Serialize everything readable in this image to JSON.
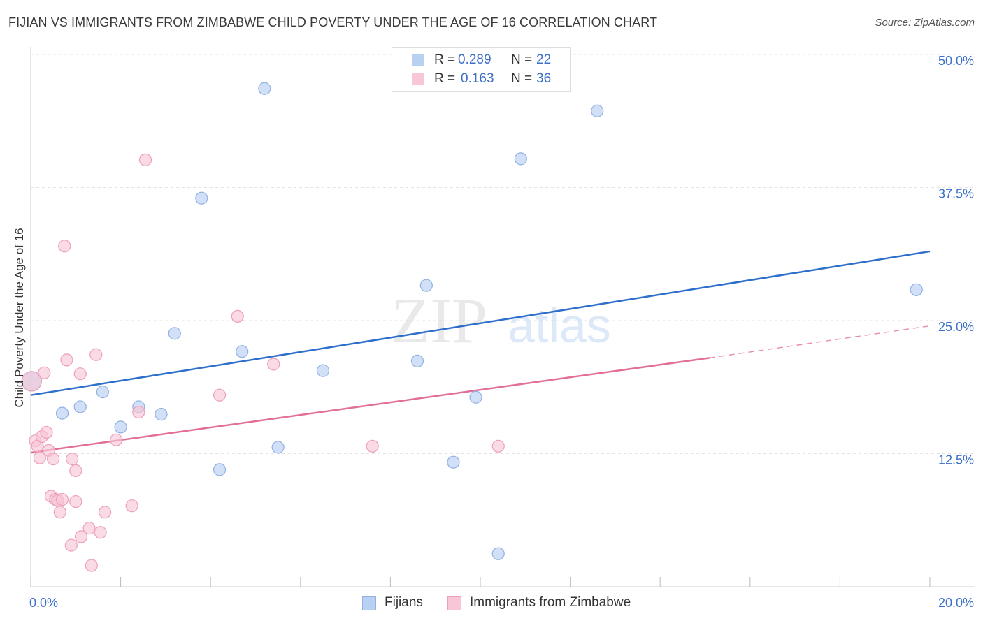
{
  "header": {
    "title": "FIJIAN VS IMMIGRANTS FROM ZIMBABWE CHILD POVERTY UNDER THE AGE OF 16 CORRELATION CHART",
    "source": "Source: ZipAtlas.com"
  },
  "watermark": {
    "zip": "ZIP",
    "atlas": "atlas"
  },
  "legend": {
    "fijians": {
      "r_label": "R = ",
      "r_value": "0.289",
      "n_label": "N = ",
      "n_value": "22"
    },
    "zimbabwe": {
      "r_label": "R = ",
      "r_value": "0.163",
      "n_label": "N = ",
      "n_value": "36"
    }
  },
  "bottom_legend": {
    "fijians": "Fijians",
    "zimbabwe": "Immigrants from Zimbabwe"
  },
  "colors": {
    "fijians_fill": "#b8d0f2",
    "fijians_stroke": "#8fb1e3",
    "fijians_line": "#2e6fcc",
    "zimbabwe_fill": "#f8c6d6",
    "zimbabwe_stroke": "#ee9fb9",
    "zimbabwe_line": "#e26f98",
    "axis_label": "#3c6fc7",
    "grid": "#e3e3e3"
  },
  "chart_data": {
    "type": "scatter",
    "title": "FIJIAN VS IMMIGRANTS FROM ZIMBABWE CHILD POVERTY UNDER THE AGE OF 16 CORRELATION CHART",
    "xlabel": "",
    "ylabel": "Child Poverty Under the Age of 16",
    "xlim": [
      0,
      20
    ],
    "ylim": [
      0,
      50
    ],
    "x_tick_labels": [
      "0.0%",
      "20.0%"
    ],
    "y_ticks": [
      12.5,
      25.0,
      37.5,
      50.0
    ],
    "y_tick_labels": [
      "12.5%",
      "25.0%",
      "37.5%",
      "50.0%"
    ],
    "grid": true,
    "legend_position": "top-center",
    "series": [
      {
        "name": "Fijians",
        "R": 0.289,
        "N": 22,
        "points": [
          [
            0.02,
            19.3
          ],
          [
            0.7,
            16.3
          ],
          [
            1.1,
            16.9
          ],
          [
            1.6,
            18.3
          ],
          [
            2.0,
            15.0
          ],
          [
            2.4,
            16.9
          ],
          [
            2.9,
            16.2
          ],
          [
            3.2,
            23.8
          ],
          [
            3.8,
            36.5
          ],
          [
            4.2,
            11.0
          ],
          [
            4.7,
            22.1
          ],
          [
            5.2,
            46.8
          ],
          [
            5.5,
            13.1
          ],
          [
            6.5,
            20.3
          ],
          [
            8.6,
            21.2
          ],
          [
            8.8,
            28.3
          ],
          [
            9.4,
            11.7
          ],
          [
            9.9,
            17.8
          ],
          [
            10.4,
            3.1
          ],
          [
            10.9,
            40.2
          ],
          [
            12.6,
            44.7
          ],
          [
            19.7,
            27.9
          ]
        ],
        "trend": {
          "x0": 0,
          "y0": 18.0,
          "x1": 20,
          "y1": 31.5,
          "style": "solid"
        }
      },
      {
        "name": "Immigrants from Zimbabwe",
        "R": 0.163,
        "N": 36,
        "points": [
          [
            0.02,
            19.3
          ],
          [
            0.1,
            13.7
          ],
          [
            0.15,
            13.2
          ],
          [
            0.2,
            12.1
          ],
          [
            0.25,
            14.1
          ],
          [
            0.3,
            20.1
          ],
          [
            0.35,
            14.5
          ],
          [
            0.4,
            12.8
          ],
          [
            0.5,
            12.0
          ],
          [
            0.45,
            8.5
          ],
          [
            0.55,
            8.2
          ],
          [
            0.6,
            8.1
          ],
          [
            0.65,
            7.0
          ],
          [
            0.7,
            8.2
          ],
          [
            0.75,
            32.0
          ],
          [
            0.8,
            21.3
          ],
          [
            0.9,
            3.9
          ],
          [
            0.92,
            12.0
          ],
          [
            1.0,
            10.9
          ],
          [
            1.0,
            8.0
          ],
          [
            1.1,
            20.0
          ],
          [
            1.12,
            4.7
          ],
          [
            1.3,
            5.5
          ],
          [
            1.35,
            2.0
          ],
          [
            1.45,
            21.8
          ],
          [
            1.55,
            5.1
          ],
          [
            1.65,
            7.0
          ],
          [
            1.9,
            13.8
          ],
          [
            2.25,
            7.6
          ],
          [
            2.4,
            16.4
          ],
          [
            2.55,
            40.1
          ],
          [
            4.2,
            18.0
          ],
          [
            4.6,
            25.4
          ],
          [
            5.4,
            20.9
          ],
          [
            7.6,
            13.2
          ],
          [
            10.4,
            13.2
          ]
        ],
        "trend": {
          "x0": 0,
          "y0": 12.6,
          "x1": 15.1,
          "y1": 21.5,
          "dashed_to_x": 20,
          "dashed_to_y": 24.5
        }
      }
    ]
  }
}
